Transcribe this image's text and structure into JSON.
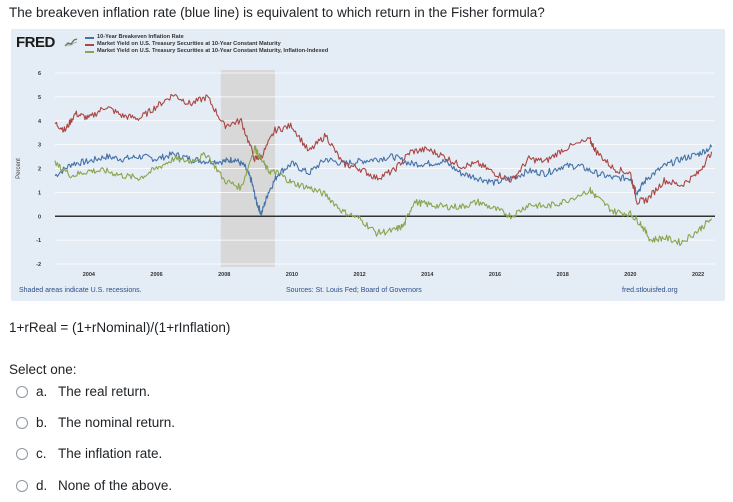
{
  "question": "The breakeven inflation rate (blue line) is equivalent to which return in the Fisher formula?",
  "fred": {
    "logo": "FRED",
    "legend": [
      {
        "label": "10-Year Breakeven Inflation Rate",
        "color": "#4572a7"
      },
      {
        "label": "Market Yield on U.S. Treasury Securities at 10-Year Constant Maturity",
        "color": "#aa4643"
      },
      {
        "label": "Market Yield on U.S. Treasury Securities at 10-Year Constant Maturity, Inflation-Indexed",
        "color": "#89a54e"
      }
    ],
    "footer_left": "Shaded areas indicate U.S. recessions.",
    "footer_mid": "Sources: St. Louis Fed; Board of Governors",
    "footer_right": "fred.stlouisfed.org"
  },
  "chart_data": {
    "type": "line",
    "ylabel": "Percent",
    "ylim": [
      -2,
      6
    ],
    "yticks": [
      "6",
      "5",
      "4",
      "3",
      "2",
      "1",
      "0",
      "-1",
      "-2"
    ],
    "xticks": [
      "2004",
      "2006",
      "2008",
      "2010",
      "2012",
      "2014",
      "2016",
      "2018",
      "2020",
      "2022"
    ],
    "x_range": [
      2003.0,
      2022.5
    ],
    "recession": [
      2007.9,
      2009.5
    ],
    "series": [
      {
        "name": "10-Year Breakeven Inflation Rate",
        "color": "#4572a7",
        "x": [
          2003.0,
          2003.5,
          2004.0,
          2004.5,
          2005.0,
          2005.5,
          2006.0,
          2006.5,
          2007.0,
          2007.5,
          2008.0,
          2008.3,
          2008.6,
          2008.8,
          2008.95,
          2009.1,
          2009.3,
          2009.6,
          2010.0,
          2010.5,
          2011.0,
          2011.5,
          2012.0,
          2012.5,
          2013.0,
          2013.5,
          2014.0,
          2014.5,
          2015.0,
          2015.5,
          2016.0,
          2016.5,
          2017.0,
          2017.5,
          2018.0,
          2018.5,
          2019.0,
          2019.5,
          2020.0,
          2020.2,
          2020.5,
          2021.0,
          2021.5,
          2022.0,
          2022.4
        ],
        "values": [
          1.7,
          2.2,
          2.3,
          2.5,
          2.4,
          2.5,
          2.4,
          2.6,
          2.4,
          2.3,
          2.3,
          2.4,
          2.1,
          1.5,
          0.6,
          0.1,
          1.0,
          1.8,
          2.2,
          1.8,
          2.4,
          2.2,
          2.3,
          2.4,
          2.5,
          2.2,
          2.2,
          2.3,
          1.8,
          1.6,
          1.4,
          1.6,
          1.9,
          1.8,
          2.1,
          2.1,
          1.8,
          1.6,
          1.6,
          1.0,
          1.6,
          2.1,
          2.4,
          2.6,
          2.9
        ]
      },
      {
        "name": "Market Yield on U.S. Treasury Securities at 10-Year Constant Maturity",
        "color": "#aa4643",
        "x": [
          2003.0,
          2003.3,
          2003.6,
          2004.0,
          2004.5,
          2005.0,
          2005.5,
          2006.0,
          2006.5,
          2007.0,
          2007.5,
          2008.0,
          2008.5,
          2008.9,
          2009.1,
          2009.5,
          2010.0,
          2010.5,
          2011.0,
          2011.5,
          2012.0,
          2012.5,
          2013.0,
          2013.5,
          2014.0,
          2014.5,
          2015.0,
          2015.5,
          2016.0,
          2016.5,
          2017.0,
          2017.5,
          2018.0,
          2018.8,
          2019.0,
          2019.5,
          2020.0,
          2020.2,
          2020.5,
          2021.0,
          2021.5,
          2022.0,
          2022.4
        ],
        "values": [
          3.9,
          3.6,
          4.3,
          4.1,
          4.6,
          4.2,
          4.1,
          4.6,
          5.1,
          4.7,
          5.0,
          3.8,
          4.0,
          2.4,
          2.5,
          3.6,
          3.8,
          2.7,
          3.4,
          2.2,
          2.0,
          1.6,
          1.9,
          2.7,
          2.8,
          2.5,
          2.1,
          2.2,
          1.8,
          1.5,
          2.4,
          2.3,
          2.8,
          3.2,
          2.7,
          2.0,
          1.8,
          0.6,
          0.7,
          1.5,
          1.3,
          1.8,
          2.7
        ]
      },
      {
        "name": "Market Yield on U.S. Treasury Securities at 10-Year Constant Maturity, Inflation-Indexed",
        "color": "#89a54e",
        "x": [
          2003.0,
          2003.5,
          2004.0,
          2004.5,
          2005.0,
          2005.5,
          2006.0,
          2006.5,
          2007.0,
          2007.5,
          2008.0,
          2008.5,
          2008.9,
          2009.0,
          2009.3,
          2009.6,
          2010.0,
          2010.5,
          2011.0,
          2011.5,
          2012.0,
          2012.5,
          2013.0,
          2013.3,
          2013.6,
          2014.0,
          2014.5,
          2015.0,
          2015.5,
          2016.0,
          2016.5,
          2017.0,
          2017.5,
          2018.0,
          2018.8,
          2019.0,
          2019.5,
          2020.0,
          2020.3,
          2020.6,
          2021.0,
          2021.5,
          2022.0,
          2022.4
        ],
        "values": [
          2.2,
          1.7,
          1.9,
          1.9,
          1.7,
          1.6,
          2.0,
          2.4,
          2.3,
          2.6,
          1.5,
          1.2,
          2.9,
          2.6,
          1.9,
          1.8,
          1.4,
          1.2,
          0.9,
          0.2,
          -0.1,
          -0.7,
          -0.6,
          -0.4,
          0.6,
          0.5,
          0.4,
          0.4,
          0.6,
          0.3,
          0.0,
          0.5,
          0.4,
          0.6,
          1.1,
          0.8,
          0.2,
          0.1,
          -0.3,
          -1.0,
          -0.9,
          -1.1,
          -0.6,
          -0.1
        ]
      }
    ]
  },
  "formula": "1+rReal = (1+rNominal)/(1+rInflation)",
  "select_one": "Select one:",
  "options": [
    {
      "letter": "a.",
      "text": "The real return."
    },
    {
      "letter": "b.",
      "text": "The nominal return."
    },
    {
      "letter": "c.",
      "text": "The inflation rate."
    },
    {
      "letter": "d.",
      "text": "None of the above."
    }
  ]
}
